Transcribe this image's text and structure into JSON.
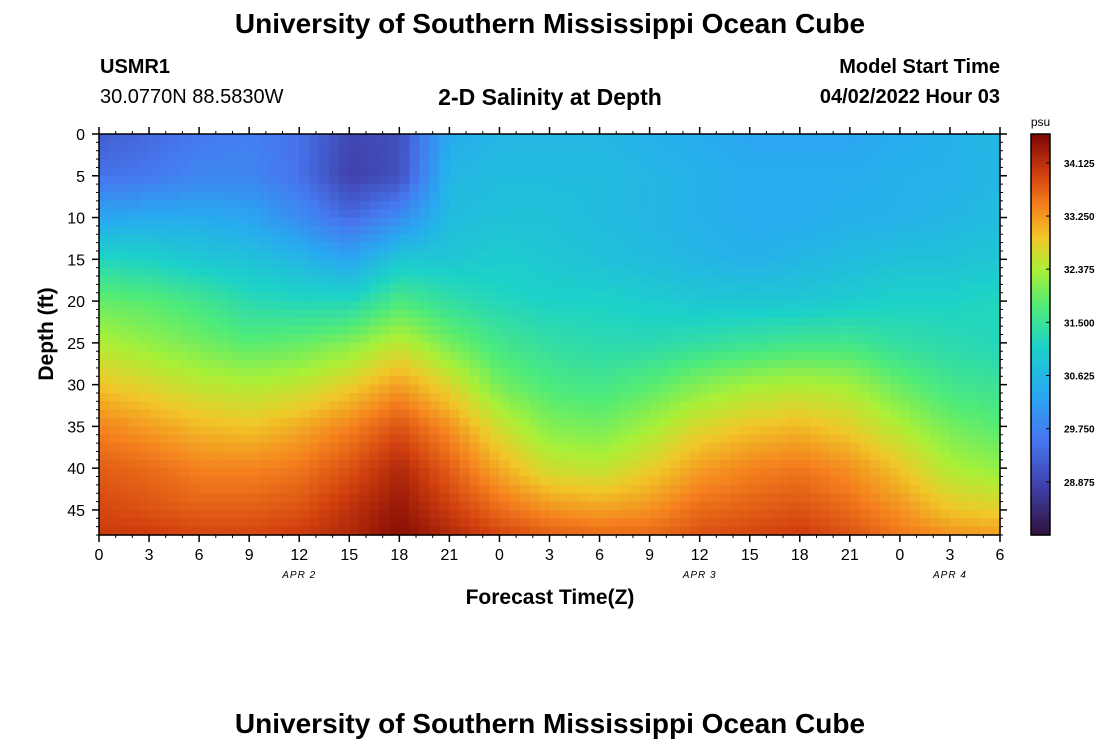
{
  "header": {
    "title": "University of Southern Mississippi Ocean Cube",
    "station_id": "USMR1",
    "coordinates": "30.0770N  88.5830W",
    "subtitle": "2-D Salinity at Depth",
    "start_label": "Model Start Time",
    "start_value": "04/02/2022 Hour 03"
  },
  "footer": {
    "title": "University of Southern Mississippi Ocean Cube"
  },
  "chart_data": {
    "type": "heatmap",
    "title": "2-D Salinity at Depth",
    "xlabel": "Forecast Time(Z)",
    "ylabel": "Depth (ft)",
    "x_tick_labels": [
      "0",
      "3",
      "6",
      "9",
      "12",
      "15",
      "18",
      "21",
      "0",
      "3",
      "6",
      "9",
      "12",
      "15",
      "18",
      "21",
      "0",
      "3",
      "6"
    ],
    "x_hours": [
      0,
      3,
      6,
      9,
      12,
      15,
      18,
      21,
      24,
      27,
      30,
      33,
      36,
      39,
      42,
      45,
      48,
      51,
      54
    ],
    "xlim": [
      0,
      54
    ],
    "date_labels": [
      {
        "label": "APR 2",
        "hour": 12
      },
      {
        "label": "APR 3",
        "hour": 36
      },
      {
        "label": "APR 4",
        "hour": 51
      }
    ],
    "y_ticks": [
      0,
      5,
      10,
      15,
      20,
      25,
      30,
      35,
      40,
      45
    ],
    "ylim": [
      48,
      0
    ],
    "colorbar": {
      "unit": "psu",
      "min": 28.0,
      "max": 34.6,
      "tick_values": [
        34.125,
        33.25,
        32.375,
        31.5,
        30.625,
        29.75,
        28.875
      ],
      "tick_labels": [
        "34.125",
        "33.250",
        "32.375",
        "31.500",
        "30.625",
        "29.750",
        "28.875"
      ]
    },
    "depths_ft": [
      0,
      5,
      10,
      15,
      20,
      25,
      30,
      35,
      40,
      45,
      48
    ],
    "hours": [
      0,
      3,
      6,
      9,
      12,
      15,
      18,
      21,
      24,
      27,
      30,
      33,
      36,
      39,
      42,
      45,
      48,
      51,
      54
    ],
    "salinity_psu": [
      [
        29.2,
        29.4,
        29.6,
        29.7,
        29.5,
        28.9,
        29.0,
        30.4,
        30.6,
        30.6,
        30.6,
        30.5,
        30.4,
        30.3,
        30.3,
        30.3,
        30.4,
        30.5,
        30.6
      ],
      [
        29.5,
        29.6,
        29.8,
        29.8,
        29.5,
        28.8,
        29.0,
        30.6,
        30.7,
        30.7,
        30.7,
        30.6,
        30.5,
        30.4,
        30.4,
        30.4,
        30.5,
        30.5,
        30.6
      ],
      [
        30.3,
        30.4,
        30.4,
        30.3,
        29.9,
        29.4,
        29.9,
        30.7,
        30.8,
        30.8,
        30.7,
        30.6,
        30.5,
        30.4,
        30.4,
        30.5,
        30.5,
        30.6,
        30.7
      ],
      [
        31.2,
        31.1,
        30.9,
        30.8,
        30.6,
        30.3,
        30.9,
        30.9,
        31.0,
        30.9,
        30.8,
        30.7,
        30.6,
        30.5,
        30.6,
        30.7,
        30.8,
        30.8,
        30.9
      ],
      [
        31.9,
        31.8,
        31.6,
        31.3,
        31.2,
        31.2,
        31.7,
        31.4,
        31.2,
        31.1,
        31.1,
        31.0,
        30.9,
        30.9,
        30.9,
        31.0,
        31.1,
        31.1,
        31.2
      ],
      [
        32.4,
        32.2,
        32.0,
        31.8,
        31.9,
        32.1,
        32.5,
        32.0,
        31.6,
        31.4,
        31.3,
        31.3,
        31.4,
        31.5,
        31.6,
        31.6,
        31.4,
        31.3,
        31.2
      ],
      [
        32.9,
        32.7,
        32.5,
        32.4,
        32.5,
        32.8,
        33.2,
        32.7,
        32.0,
        31.7,
        31.6,
        31.8,
        32.1,
        32.3,
        32.4,
        32.3,
        31.9,
        31.6,
        31.5
      ],
      [
        33.4,
        33.2,
        33.0,
        32.9,
        33.1,
        33.4,
        33.8,
        33.3,
        32.6,
        32.1,
        32.0,
        32.3,
        32.7,
        32.9,
        33.0,
        32.8,
        32.4,
        32.0,
        31.8
      ],
      [
        33.7,
        33.6,
        33.4,
        33.4,
        33.5,
        33.8,
        34.2,
        33.7,
        33.1,
        32.6,
        32.5,
        32.8,
        33.2,
        33.4,
        33.5,
        33.3,
        32.9,
        32.4,
        32.2
      ],
      [
        33.9,
        33.8,
        33.7,
        33.7,
        33.8,
        34.1,
        34.4,
        34.0,
        33.6,
        33.3,
        33.2,
        33.3,
        33.6,
        33.7,
        33.8,
        33.6,
        33.3,
        32.9,
        32.8
      ],
      [
        34.0,
        34.0,
        33.9,
        33.9,
        34.0,
        34.2,
        34.5,
        34.2,
        33.9,
        33.7,
        33.6,
        33.6,
        33.8,
        33.9,
        34.0,
        33.8,
        33.5,
        33.3,
        33.2
      ]
    ]
  }
}
